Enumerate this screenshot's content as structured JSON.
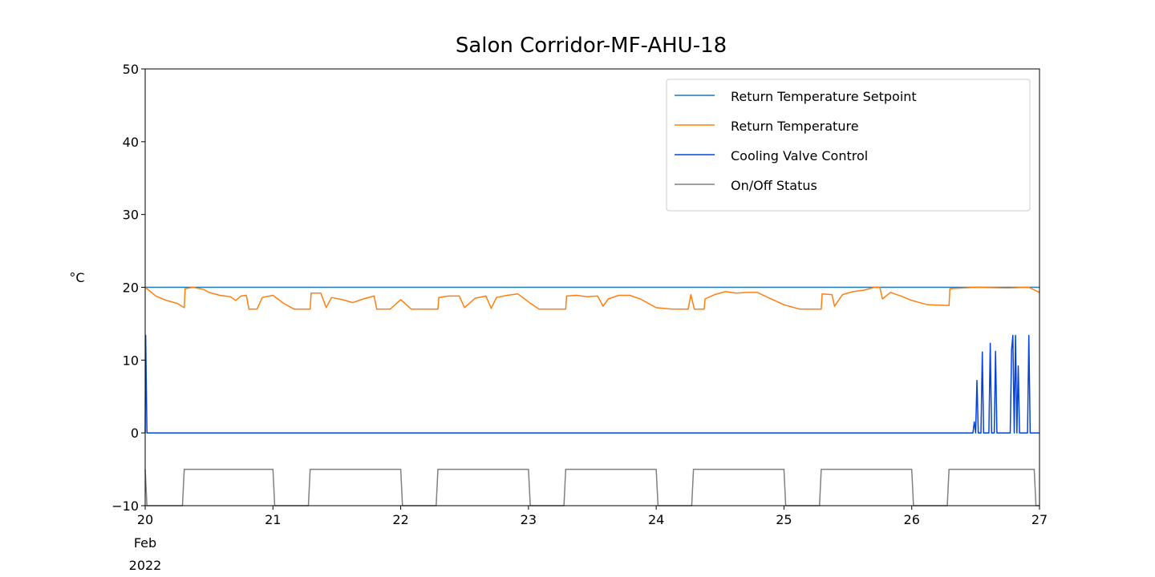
{
  "chart_data": {
    "type": "line",
    "title": "Salon Corridor-MF-AHU-18",
    "ylabel": "°C",
    "xlabel": "",
    "ylim": [
      -10,
      50
    ],
    "yticks": [
      -10,
      0,
      10,
      20,
      30,
      40,
      50
    ],
    "ytick_labels": [
      "−10",
      "0",
      "10",
      "20",
      "30",
      "40",
      "50"
    ],
    "xlim": [
      "2022-02-20",
      "2022-02-27"
    ],
    "xticks": [
      "2022-02-20",
      "2022-02-21",
      "2022-02-22",
      "2022-02-23",
      "2022-02-24",
      "2022-02-25",
      "2022-02-26",
      "2022-02-27"
    ],
    "xtick_labels": [
      "20",
      "21",
      "22",
      "23",
      "24",
      "25",
      "26",
      "27"
    ],
    "xtick_sublabel": [
      "Feb",
      "2022"
    ],
    "grid": false,
    "legend_position": "top-right",
    "series": [
      {
        "name": "Return Temperature Setpoint",
        "color": "#1f77b4",
        "points": [
          [
            "2022-02-20 00:00",
            20
          ],
          [
            "2022-02-27 00:00",
            20
          ]
        ]
      },
      {
        "name": "Return Temperature",
        "color": "#ff7f0e",
        "points": [
          [
            "2022-02-20 00:00",
            20.0
          ],
          [
            "2022-02-20 02:00",
            18.8
          ],
          [
            "2022-02-20 04:00",
            18.2
          ],
          [
            "2022-02-20 06:00",
            17.8
          ],
          [
            "2022-02-20 07:20",
            17.2
          ],
          [
            "2022-02-20 07:30",
            19.8
          ],
          [
            "2022-02-20 09:00",
            20.0
          ],
          [
            "2022-02-20 11:00",
            19.7
          ],
          [
            "2022-02-20 12:00",
            19.3
          ],
          [
            "2022-02-20 14:00",
            18.9
          ],
          [
            "2022-02-20 16:00",
            18.7
          ],
          [
            "2022-02-20 17:00",
            18.2
          ],
          [
            "2022-02-20 18:00",
            18.8
          ],
          [
            "2022-02-20 19:00",
            18.9
          ],
          [
            "2022-02-20 19:30",
            17.0
          ],
          [
            "2022-02-20 21:00",
            17.0
          ],
          [
            "2022-02-20 22:00",
            18.6
          ],
          [
            "2022-02-21 00:00",
            18.9
          ],
          [
            "2022-02-21 02:00",
            17.8
          ],
          [
            "2022-02-21 04:00",
            17.0
          ],
          [
            "2022-02-21 07:00",
            17.0
          ],
          [
            "2022-02-21 07:10",
            19.2
          ],
          [
            "2022-02-21 09:00",
            19.2
          ],
          [
            "2022-02-21 10:00",
            17.2
          ],
          [
            "2022-02-21 11:00",
            18.6
          ],
          [
            "2022-02-21 13:00",
            18.3
          ],
          [
            "2022-02-21 15:00",
            17.9
          ],
          [
            "2022-02-21 17:00",
            18.4
          ],
          [
            "2022-02-21 19:00",
            18.8
          ],
          [
            "2022-02-21 19:30",
            17.0
          ],
          [
            "2022-02-21 22:00",
            17.0
          ],
          [
            "2022-02-22 00:00",
            18.3
          ],
          [
            "2022-02-22 02:00",
            17.0
          ],
          [
            "2022-02-22 07:00",
            17.0
          ],
          [
            "2022-02-22 07:10",
            18.6
          ],
          [
            "2022-02-22 09:00",
            18.8
          ],
          [
            "2022-02-22 11:00",
            18.8
          ],
          [
            "2022-02-22 12:00",
            17.2
          ],
          [
            "2022-02-22 14:00",
            18.5
          ],
          [
            "2022-02-22 16:00",
            18.8
          ],
          [
            "2022-02-22 17:00",
            17.1
          ],
          [
            "2022-02-22 18:00",
            18.6
          ],
          [
            "2022-02-22 20:00",
            18.9
          ],
          [
            "2022-02-22 22:00",
            19.1
          ],
          [
            "2022-02-23 00:00",
            18.0
          ],
          [
            "2022-02-23 02:00",
            17.0
          ],
          [
            "2022-02-23 07:00",
            17.0
          ],
          [
            "2022-02-23 07:10",
            18.8
          ],
          [
            "2022-02-23 09:00",
            18.9
          ],
          [
            "2022-02-23 11:00",
            18.7
          ],
          [
            "2022-02-23 13:00",
            18.8
          ],
          [
            "2022-02-23 14:00",
            17.4
          ],
          [
            "2022-02-23 15:00",
            18.4
          ],
          [
            "2022-02-23 17:00",
            18.9
          ],
          [
            "2022-02-23 19:00",
            18.9
          ],
          [
            "2022-02-23 21:00",
            18.4
          ],
          [
            "2022-02-24 00:00",
            17.2
          ],
          [
            "2022-02-24 03:00",
            17.0
          ],
          [
            "2022-02-24 06:00",
            17.0
          ],
          [
            "2022-02-24 06:30",
            19.0
          ],
          [
            "2022-02-24 07:10",
            17.0
          ],
          [
            "2022-02-24 09:00",
            17.0
          ],
          [
            "2022-02-24 09:10",
            18.4
          ],
          [
            "2022-02-24 11:00",
            19.0
          ],
          [
            "2022-02-24 13:00",
            19.4
          ],
          [
            "2022-02-24 15:00",
            19.2
          ],
          [
            "2022-02-24 17:00",
            19.3
          ],
          [
            "2022-02-24 19:00",
            19.3
          ],
          [
            "2022-02-24 21:00",
            18.6
          ],
          [
            "2022-02-25 00:00",
            17.6
          ],
          [
            "2022-02-25 03:00",
            17.0
          ],
          [
            "2022-02-25 07:00",
            17.0
          ],
          [
            "2022-02-25 07:10",
            19.1
          ],
          [
            "2022-02-25 09:00",
            19.0
          ],
          [
            "2022-02-25 09:30",
            17.4
          ],
          [
            "2022-02-25 11:00",
            19.0
          ],
          [
            "2022-02-25 13:00",
            19.4
          ],
          [
            "2022-02-25 15:00",
            19.6
          ],
          [
            "2022-02-25 17:00",
            20.0
          ],
          [
            "2022-02-25 18:00",
            20.0
          ],
          [
            "2022-02-25 18:30",
            18.4
          ],
          [
            "2022-02-25 20:00",
            19.3
          ],
          [
            "2022-02-25 22:00",
            18.8
          ],
          [
            "2022-02-26 00:00",
            18.2
          ],
          [
            "2022-02-26 03:00",
            17.6
          ],
          [
            "2022-02-26 07:00",
            17.5
          ],
          [
            "2022-02-26 07:10",
            19.8
          ],
          [
            "2022-02-26 12:00",
            20.0
          ],
          [
            "2022-02-26 18:00",
            19.9
          ],
          [
            "2022-02-26 22:00",
            20.0
          ],
          [
            "2022-02-27 00:00",
            19.3
          ]
        ]
      },
      {
        "name": "Cooling Valve Control",
        "color": "#0343df",
        "points": [
          [
            "2022-02-20 00:00",
            0.0
          ],
          [
            "2022-02-20 00:05",
            13.4
          ],
          [
            "2022-02-20 00:20",
            0.0
          ],
          [
            "2022-02-26 11:30",
            0.0
          ],
          [
            "2022-02-26 11:45",
            1.5
          ],
          [
            "2022-02-26 12:00",
            0.0
          ],
          [
            "2022-02-26 12:15",
            7.2
          ],
          [
            "2022-02-26 12:30",
            0.0
          ],
          [
            "2022-02-26 13:00",
            0.0
          ],
          [
            "2022-02-26 13:15",
            11.1
          ],
          [
            "2022-02-26 13:30",
            0.0
          ],
          [
            "2022-02-26 14:30",
            0.0
          ],
          [
            "2022-02-26 14:45",
            12.3
          ],
          [
            "2022-02-26 15:00",
            0.0
          ],
          [
            "2022-02-26 15:30",
            0.0
          ],
          [
            "2022-02-26 15:45",
            11.2
          ],
          [
            "2022-02-26 16:00",
            0.0
          ],
          [
            "2022-02-26 18:30",
            0.0
          ],
          [
            "2022-02-26 18:45",
            11.4
          ],
          [
            "2022-02-26 19:00",
            13.4
          ],
          [
            "2022-02-26 19:15",
            0.0
          ],
          [
            "2022-02-26 19:30",
            13.4
          ],
          [
            "2022-02-26 19:45",
            0.0
          ],
          [
            "2022-02-26 20:00",
            9.2
          ],
          [
            "2022-02-26 20:15",
            0.0
          ],
          [
            "2022-02-26 21:45",
            0.0
          ],
          [
            "2022-02-26 22:00",
            13.4
          ],
          [
            "2022-02-26 22:15",
            0.0
          ],
          [
            "2022-02-27 00:00",
            0.0
          ]
        ]
      },
      {
        "name": "On/Off Status",
        "color": "#808080",
        "points": [
          [
            "2022-02-20 00:00",
            -5
          ],
          [
            "2022-02-20 00:20",
            -10
          ],
          [
            "2022-02-20 07:00",
            -10
          ],
          [
            "2022-02-20 07:20",
            -5
          ],
          [
            "2022-02-20 24:00",
            -5
          ],
          [
            "2022-02-21 00:20",
            -10
          ],
          [
            "2022-02-21 06:40",
            -10
          ],
          [
            "2022-02-21 07:00",
            -5
          ],
          [
            "2022-02-21 24:00",
            -5
          ],
          [
            "2022-02-22 00:20",
            -10
          ],
          [
            "2022-02-22 06:40",
            -10
          ],
          [
            "2022-02-22 07:00",
            -5
          ],
          [
            "2022-02-22 24:00",
            -5
          ],
          [
            "2022-02-23 00:20",
            -10
          ],
          [
            "2022-02-23 06:40",
            -10
          ],
          [
            "2022-02-23 07:00",
            -5
          ],
          [
            "2022-02-23 24:00",
            -5
          ],
          [
            "2022-02-24 00:20",
            -10
          ],
          [
            "2022-02-24 06:40",
            -10
          ],
          [
            "2022-02-24 07:00",
            -5
          ],
          [
            "2022-02-24 24:00",
            -5
          ],
          [
            "2022-02-25 00:20",
            -10
          ],
          [
            "2022-02-25 06:40",
            -10
          ],
          [
            "2022-02-25 07:00",
            -5
          ],
          [
            "2022-02-25 24:00",
            -5
          ],
          [
            "2022-02-26 00:20",
            -10
          ],
          [
            "2022-02-26 06:40",
            -10
          ],
          [
            "2022-02-26 07:00",
            -5
          ],
          [
            "2022-02-26 23:00",
            -5
          ],
          [
            "2022-02-26 23:20",
            -10
          ],
          [
            "2022-02-27 00:00",
            -10
          ]
        ]
      }
    ]
  }
}
